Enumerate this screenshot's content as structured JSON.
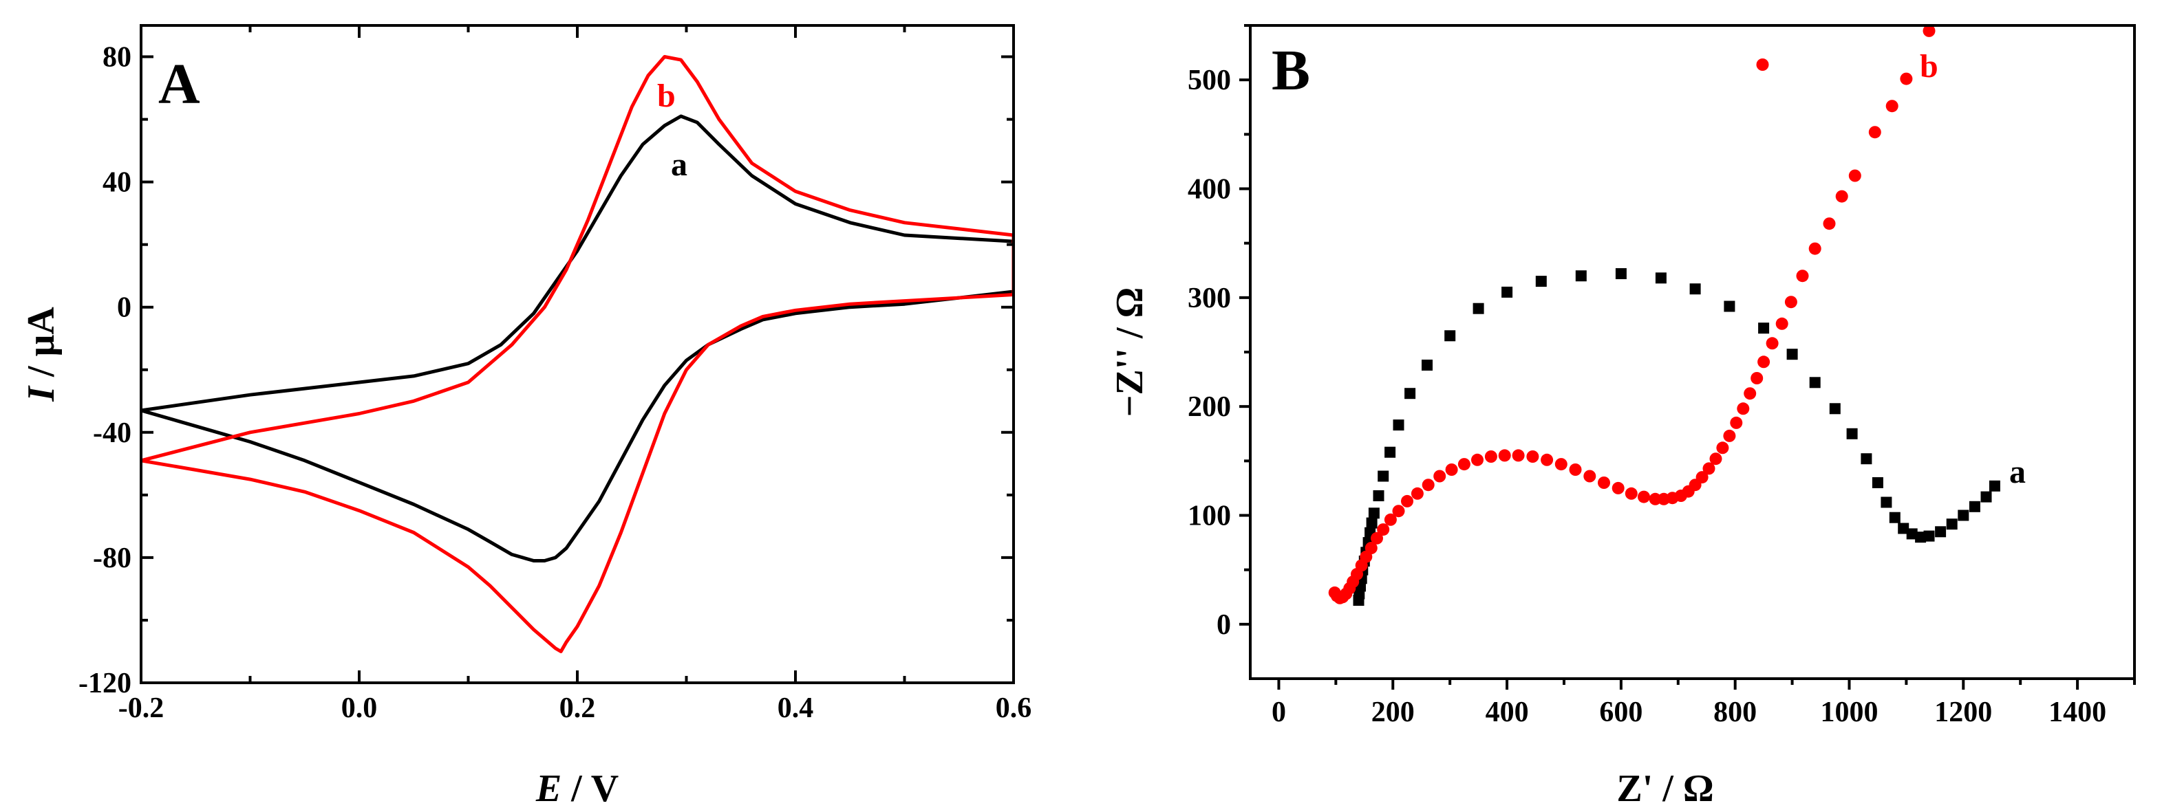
{
  "chart_data": [
    {
      "type": "line",
      "panel_label": "A",
      "xlabel_symbol": "E",
      "xlabel_unit": " / V",
      "ylabel_symbol": "I",
      "ylabel_unit": " / μA",
      "xlim": [
        -0.2,
        0.6
      ],
      "ylim": [
        -120,
        90
      ],
      "x_ticks": [
        -0.2,
        0.0,
        0.2,
        0.4,
        0.6
      ],
      "x_tick_labels": [
        "-0.2",
        "0.0",
        "0.2",
        "0.4",
        "0.6"
      ],
      "y_ticks": [
        -120,
        -80,
        -40,
        0,
        40,
        80
      ],
      "y_tick_labels": [
        "-120",
        "-80",
        "-40",
        "0",
        "40",
        "80"
      ],
      "grid": false,
      "series": [
        {
          "name": "a",
          "color": "#000000",
          "x": [
            -0.2,
            -0.1,
            0.0,
            0.05,
            0.1,
            0.13,
            0.16,
            0.18,
            0.2,
            0.22,
            0.24,
            0.26,
            0.28,
            0.295,
            0.31,
            0.33,
            0.36,
            0.4,
            0.45,
            0.5,
            0.55,
            0.6,
            0.6,
            0.55,
            0.5,
            0.45,
            0.4,
            0.37,
            0.35,
            0.32,
            0.3,
            0.28,
            0.26,
            0.24,
            0.22,
            0.2,
            0.19,
            0.18,
            0.17,
            0.16,
            0.14,
            0.12,
            0.1,
            0.05,
            0.0,
            -0.05,
            -0.1,
            -0.15,
            -0.2
          ],
          "y": [
            -33,
            -28,
            -24,
            -22,
            -18,
            -12,
            -2,
            8,
            18,
            30,
            42,
            52,
            58,
            61,
            59,
            52,
            42,
            33,
            27,
            23,
            22,
            21,
            5,
            3,
            1,
            0,
            -2,
            -4,
            -7,
            -12,
            -17,
            -25,
            -36,
            -49,
            -62,
            -72,
            -77,
            -80,
            -81,
            -81,
            -79,
            -75,
            -71,
            -63,
            -56,
            -49,
            -43,
            -38,
            -33
          ]
        },
        {
          "name": "b",
          "color": "#ff0000",
          "x": [
            -0.2,
            -0.1,
            0.0,
            0.05,
            0.1,
            0.14,
            0.17,
            0.19,
            0.21,
            0.23,
            0.25,
            0.265,
            0.28,
            0.295,
            0.31,
            0.33,
            0.36,
            0.4,
            0.45,
            0.5,
            0.55,
            0.6,
            0.6,
            0.55,
            0.5,
            0.45,
            0.4,
            0.37,
            0.35,
            0.32,
            0.3,
            0.28,
            0.26,
            0.24,
            0.22,
            0.2,
            0.19,
            0.185,
            0.18,
            0.16,
            0.14,
            0.12,
            0.1,
            0.05,
            0.0,
            -0.05,
            -0.1,
            -0.15,
            -0.2
          ],
          "y": [
            -49,
            -40,
            -34,
            -30,
            -24,
            -12,
            0,
            12,
            28,
            46,
            64,
            74,
            80,
            79,
            72,
            60,
            46,
            37,
            31,
            27,
            25,
            23,
            4,
            3,
            2,
            1,
            -1,
            -3,
            -6,
            -12,
            -20,
            -34,
            -53,
            -72,
            -89,
            -102,
            -107,
            -110,
            -109,
            -103,
            -96,
            -89,
            -83,
            -72,
            -65,
            -59,
            -55,
            -52,
            -49
          ]
        }
      ]
    },
    {
      "type": "scatter",
      "panel_label": "B",
      "xlabel": "Z' / Ω",
      "ylabel": "−Z'' / Ω",
      "xlim": [
        -50,
        1500
      ],
      "ylim": [
        -50,
        550
      ],
      "x_ticks": [
        0,
        200,
        400,
        600,
        800,
        1000,
        1200,
        1400
      ],
      "x_tick_labels": [
        "0",
        "200",
        "400",
        "600",
        "800",
        "1000",
        "1200",
        "1400"
      ],
      "y_ticks": [
        0,
        100,
        200,
        300,
        400,
        500
      ],
      "y_tick_labels": [
        "0",
        "100",
        "200",
        "300",
        "400",
        "500"
      ],
      "grid": false,
      "series": [
        {
          "name": "a",
          "color": "#000000",
          "marker": "square",
          "x": [
            140,
            141,
            143,
            145,
            147,
            150,
            153,
            157,
            160,
            163,
            167,
            175,
            183,
            195,
            210,
            230,
            260,
            300,
            350,
            400,
            460,
            530,
            600,
            670,
            730,
            790,
            850,
            900,
            940,
            975,
            1005,
            1030,
            1050,
            1065,
            1080,
            1095,
            1110,
            1125,
            1140,
            1160,
            1180,
            1200,
            1220,
            1240,
            1255
          ],
          "y": [
            22,
            28,
            35,
            42,
            50,
            58,
            66,
            75,
            84,
            93,
            102,
            118,
            136,
            158,
            183,
            212,
            238,
            265,
            290,
            305,
            315,
            320,
            322,
            318,
            308,
            292,
            272,
            248,
            222,
            198,
            175,
            152,
            130,
            112,
            98,
            88,
            83,
            80,
            81,
            85,
            92,
            100,
            108,
            117,
            127
          ]
        },
        {
          "name": "b",
          "color": "#ff0000",
          "marker": "circle",
          "x": [
            98,
            102,
            107,
            112,
            118,
            124,
            130,
            137,
            145,
            153,
            162,
            172,
            183,
            196,
            210,
            225,
            243,
            262,
            282,
            303,
            325,
            348,
            372,
            396,
            420,
            445,
            470,
            495,
            520,
            545,
            570,
            595,
            618,
            640,
            660,
            675,
            690,
            705,
            718,
            730,
            742,
            754,
            766,
            778,
            790,
            802,
            814,
            826,
            838,
            850,
            865,
            882,
            898,
            918,
            940,
            965,
            987,
            1010,
            1045,
            1075,
            1100,
            1140,
            848
          ],
          "y": [
            29,
            26,
            24,
            25,
            28,
            33,
            39,
            46,
            54,
            62,
            70,
            79,
            87,
            96,
            104,
            113,
            120,
            128,
            136,
            142,
            147,
            151,
            154,
            155,
            155,
            154,
            151,
            147,
            142,
            136,
            130,
            125,
            120,
            117,
            115,
            115,
            116,
            118,
            122,
            128,
            135,
            143,
            152,
            162,
            173,
            185,
            198,
            212,
            226,
            241,
            258,
            276,
            296,
            320,
            345,
            368,
            393,
            412,
            452,
            476,
            501,
            545,
            514
          ]
        }
      ]
    }
  ]
}
